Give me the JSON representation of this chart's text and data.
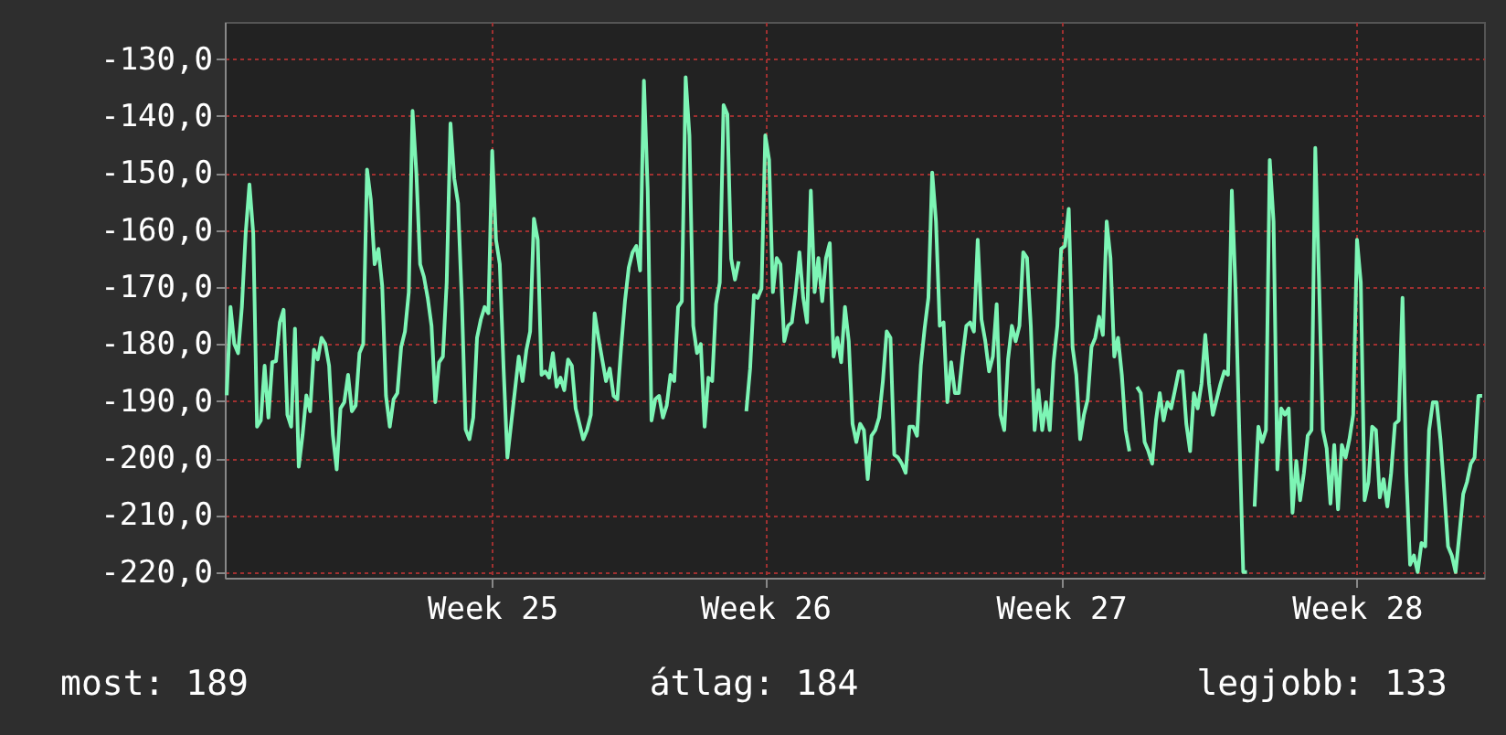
{
  "chart_data": {
    "type": "line",
    "ylim": [
      -221,
      -123.5
    ],
    "categories": [
      null,
      null,
      null,
      null,
      null,
      null,
      null,
      null,
      null,
      null,
      null,
      null,
      null,
      null,
      null,
      null,
      null,
      null,
      null,
      null,
      null,
      null,
      null,
      null,
      null,
      null,
      null,
      null,
      null,
      null,
      null,
      null,
      null,
      null,
      null,
      null,
      null,
      null,
      null,
      null,
      null,
      null,
      null,
      null,
      null,
      null,
      null,
      null,
      null,
      null,
      null,
      null,
      null,
      null,
      null,
      null,
      null,
      null,
      null,
      null,
      null,
      null,
      null,
      null,
      null,
      null,
      null,
      null,
      null,
      null,
      "Week 25",
      null,
      null,
      null,
      null,
      null,
      null,
      null,
      null,
      null,
      null,
      null,
      null,
      null,
      null,
      null,
      null,
      null,
      null,
      null,
      null,
      null,
      null,
      null,
      null,
      null,
      null,
      null,
      null,
      null,
      null,
      null,
      null,
      null,
      null,
      null,
      null,
      null,
      null,
      null,
      null,
      null,
      null,
      null,
      null,
      null,
      null,
      null,
      null,
      null,
      null,
      null,
      null,
      null,
      null,
      null,
      null,
      null,
      null,
      null,
      null,
      null,
      null,
      null,
      null,
      null,
      null,
      null,
      null,
      null,
      null,
      null,
      "Week 26",
      null,
      null,
      null,
      null,
      null,
      null,
      null,
      null,
      null,
      null,
      null,
      null,
      null,
      null,
      null,
      null,
      null,
      null,
      null,
      null,
      null,
      null,
      null,
      null,
      null,
      null,
      null,
      null,
      null,
      null,
      null,
      null,
      null,
      null,
      null,
      null,
      null,
      null,
      null,
      null,
      null,
      null,
      null,
      null,
      null,
      null,
      null,
      null,
      null,
      null,
      null,
      null,
      null,
      null,
      null,
      null,
      null,
      null,
      null,
      null,
      null,
      null,
      null,
      null,
      null,
      null,
      null,
      null,
      null,
      null,
      null,
      null,
      null,
      null,
      null,
      null,
      null,
      "Week 27",
      null,
      null,
      null,
      null,
      null,
      null,
      null,
      null,
      null,
      null,
      null,
      null,
      null,
      null,
      null,
      null,
      null,
      null,
      null,
      null,
      null,
      null,
      null,
      null,
      null,
      null,
      null,
      null,
      null,
      null,
      null,
      null,
      null,
      null,
      null,
      null,
      null,
      null,
      null,
      null,
      null,
      null,
      null,
      null,
      null,
      null,
      null,
      null,
      null,
      null,
      null,
      null,
      null,
      null,
      null,
      null,
      null,
      null,
      null,
      null,
      null,
      null,
      null,
      null,
      null,
      null,
      null,
      null,
      null,
      null,
      null,
      null,
      null,
      null,
      null,
      null,
      null,
      "Week 28",
      null,
      null,
      null,
      null,
      null,
      null,
      null,
      null,
      null,
      null,
      null,
      null,
      null,
      null,
      null,
      null,
      null,
      null,
      null,
      null,
      null,
      null,
      null,
      null,
      null,
      null,
      null,
      null,
      null,
      null,
      null,
      null,
      null
    ],
    "yticks": [
      {
        "value": -130,
        "label": "-130,0"
      },
      {
        "value": -140,
        "label": "-140,0"
      },
      {
        "value": -150,
        "label": "-150,0"
      },
      {
        "value": -160,
        "label": "-160,0"
      },
      {
        "value": -170,
        "label": "-170,0"
      },
      {
        "value": -180,
        "label": "-180,0"
      },
      {
        "value": -190,
        "label": "-190,0"
      },
      {
        "value": -200,
        "label": "-200,0"
      },
      {
        "value": -210,
        "label": "-210,0"
      },
      {
        "value": -220,
        "label": "-220,0"
      }
    ],
    "grid": true,
    "marker": "none",
    "line_style": "solid",
    "annotations": [
      "most: 189",
      "átlag: 184",
      "legjobb: 133"
    ],
    "series": [
      {
        "color": "#7df5b5",
        "values": [
          -189,
          -173.5,
          -180,
          -181.6,
          -173.5,
          -160.6,
          -152,
          -160.6,
          -194.5,
          -193.4,
          -183.8,
          -192.9,
          -183.2,
          -183,
          -176.2,
          -174,
          -192.4,
          -194.5,
          -177.3,
          -201.5,
          -196,
          -189,
          -191.8,
          -181,
          -182.7,
          -178.9,
          -180,
          -183.8,
          -196,
          -202,
          -191.3,
          -190.2,
          -185.4,
          -191.8,
          -190.8,
          -181.6,
          -180,
          -149.4,
          -154.7,
          -166,
          -163.3,
          -169.8,
          -189.1,
          -194.5,
          -189.7,
          -188.6,
          -180.5,
          -177.8,
          -170.9,
          -139.1,
          -149.9,
          -166,
          -168.2,
          -171.9,
          -176.8,
          -190.2,
          -183.2,
          -182.2,
          -169.2,
          -141.3,
          -151,
          -155.3,
          -172.5,
          -195,
          -196.7,
          -192.9,
          -178.9,
          -175.7,
          -173.5,
          -174.6,
          -146.1,
          -161.7,
          -166,
          -184.3,
          -199.9,
          -194,
          -188.1,
          -182.2,
          -186.5,
          -181.1,
          -177.8,
          -158,
          -161.7,
          -185.4,
          -184.8,
          -185.9,
          -181.6,
          -187.5,
          -185.9,
          -188.1,
          -182.7,
          -183.8,
          -191.3,
          -194,
          -196.7,
          -195.1,
          -192.4,
          -174.6,
          -178.9,
          -182.7,
          -186.5,
          -184.3,
          -189.1,
          -189.7,
          -180.5,
          -172.5,
          -166.6,
          -163.9,
          -162.8,
          -167.1,
          -133.8,
          -153.1,
          -193.4,
          -189.7,
          -189.1,
          -192.9,
          -190.8,
          -185.4,
          -186.5,
          -173.5,
          -172.5,
          -133.2,
          -143.4,
          -176.8,
          -181.6,
          -180,
          -194.5,
          -185.9,
          -186.5,
          -173,
          -169.2,
          -138.1,
          -139.7,
          -165,
          -168.7,
          -165.5,
          null,
          -191.8,
          -184.3,
          -171.4,
          -171.9,
          -170.3,
          -143.4,
          -147.7,
          -170.9,
          -164.9,
          -166,
          -179.5,
          -176.8,
          -176.2,
          -170.9,
          -163.9,
          -171.9,
          -176.2,
          -153.1,
          -170.9,
          -164.9,
          -172.5,
          -164.9,
          -162.3,
          -182.2,
          -178.9,
          -183.2,
          -173.5,
          -179.5,
          -194,
          -197.2,
          -194,
          -195.1,
          -203.7,
          -196.1,
          -195.1,
          -192.9,
          -186.5,
          -177.8,
          -178.9,
          -199.4,
          -199.9,
          -201,
          -202.6,
          -194.5,
          -194.5,
          -196.1,
          -183.8,
          -177.3,
          -171.9,
          -149.9,
          -158.5,
          -176.8,
          -176.2,
          -190.2,
          -183.2,
          -188.6,
          -188.6,
          -182.2,
          -176.8,
          -176.2,
          -177.8,
          -161.7,
          -175.7,
          -179.5,
          -184.8,
          -182.2,
          -173,
          -192.4,
          -195.1,
          -182.7,
          -176.8,
          -179.5,
          -176.8,
          -163.9,
          -164.9,
          -176.8,
          -195.1,
          -188.1,
          -195.1,
          -190.2,
          -195.1,
          -183.2,
          -176.8,
          -163.3,
          -162.8,
          -156.3,
          -180.5,
          -185.4,
          -196.7,
          -192.4,
          -189.7,
          -180.5,
          -178.9,
          -175.2,
          -178.4,
          -158.5,
          -164.9,
          -182.2,
          -178.9,
          -185.4,
          -195.1,
          -198.8,
          null,
          -187.5,
          -188.6,
          -197.2,
          -198.8,
          -201,
          -193.4,
          -188.6,
          -193.4,
          -190.2,
          -191.3,
          -188.1,
          -184.8,
          -184.8,
          -194,
          -198.8,
          -188.6,
          -191.3,
          -187,
          -178.4,
          -187,
          -192.4,
          -189.7,
          -187,
          -184.8,
          -185.4,
          -153.1,
          -170.9,
          -196.1,
          -220,
          -220,
          null,
          -208.5,
          -194.5,
          -197.2,
          -195.1,
          -147.7,
          -158.5,
          -202,
          -191.3,
          -192.4,
          -191.3,
          -209.6,
          -200.5,
          -207.4,
          -202.6,
          -196.1,
          -195.1,
          -145.6,
          -169.2,
          -195.1,
          -198.3,
          -208,
          -197.7,
          -209,
          -197.7,
          -199.9,
          -196.7,
          -192.4,
          -161.7,
          -169.2,
          -207.4,
          -204.2,
          -194.5,
          -195.1,
          -206.9,
          -203.7,
          -208.5,
          -202.6,
          -194,
          -193.4,
          -171.9,
          -202.6,
          -218.7,
          -217.1,
          -220,
          -214.9,
          -215.5,
          -195.1,
          -190.2,
          -190.2,
          -196.7,
          -205.8,
          -215.5,
          -217.1,
          -220,
          -213.3,
          -206.3,
          -204.2,
          -201,
          -199.9,
          -189.1,
          -189.1
        ]
      }
    ]
  }
}
